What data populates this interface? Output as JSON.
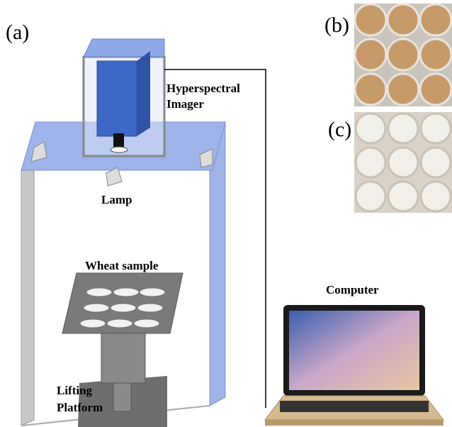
{
  "panels": {
    "a": "(a)",
    "b": "(b)",
    "c": "(c)"
  },
  "labels": {
    "imager": [
      "Hyperspectral",
      "Imager"
    ],
    "lamp": "Lamp",
    "sample": "Wheat sample",
    "computer": "Computer",
    "platform": [
      "Lifting",
      "Platform"
    ]
  }
}
